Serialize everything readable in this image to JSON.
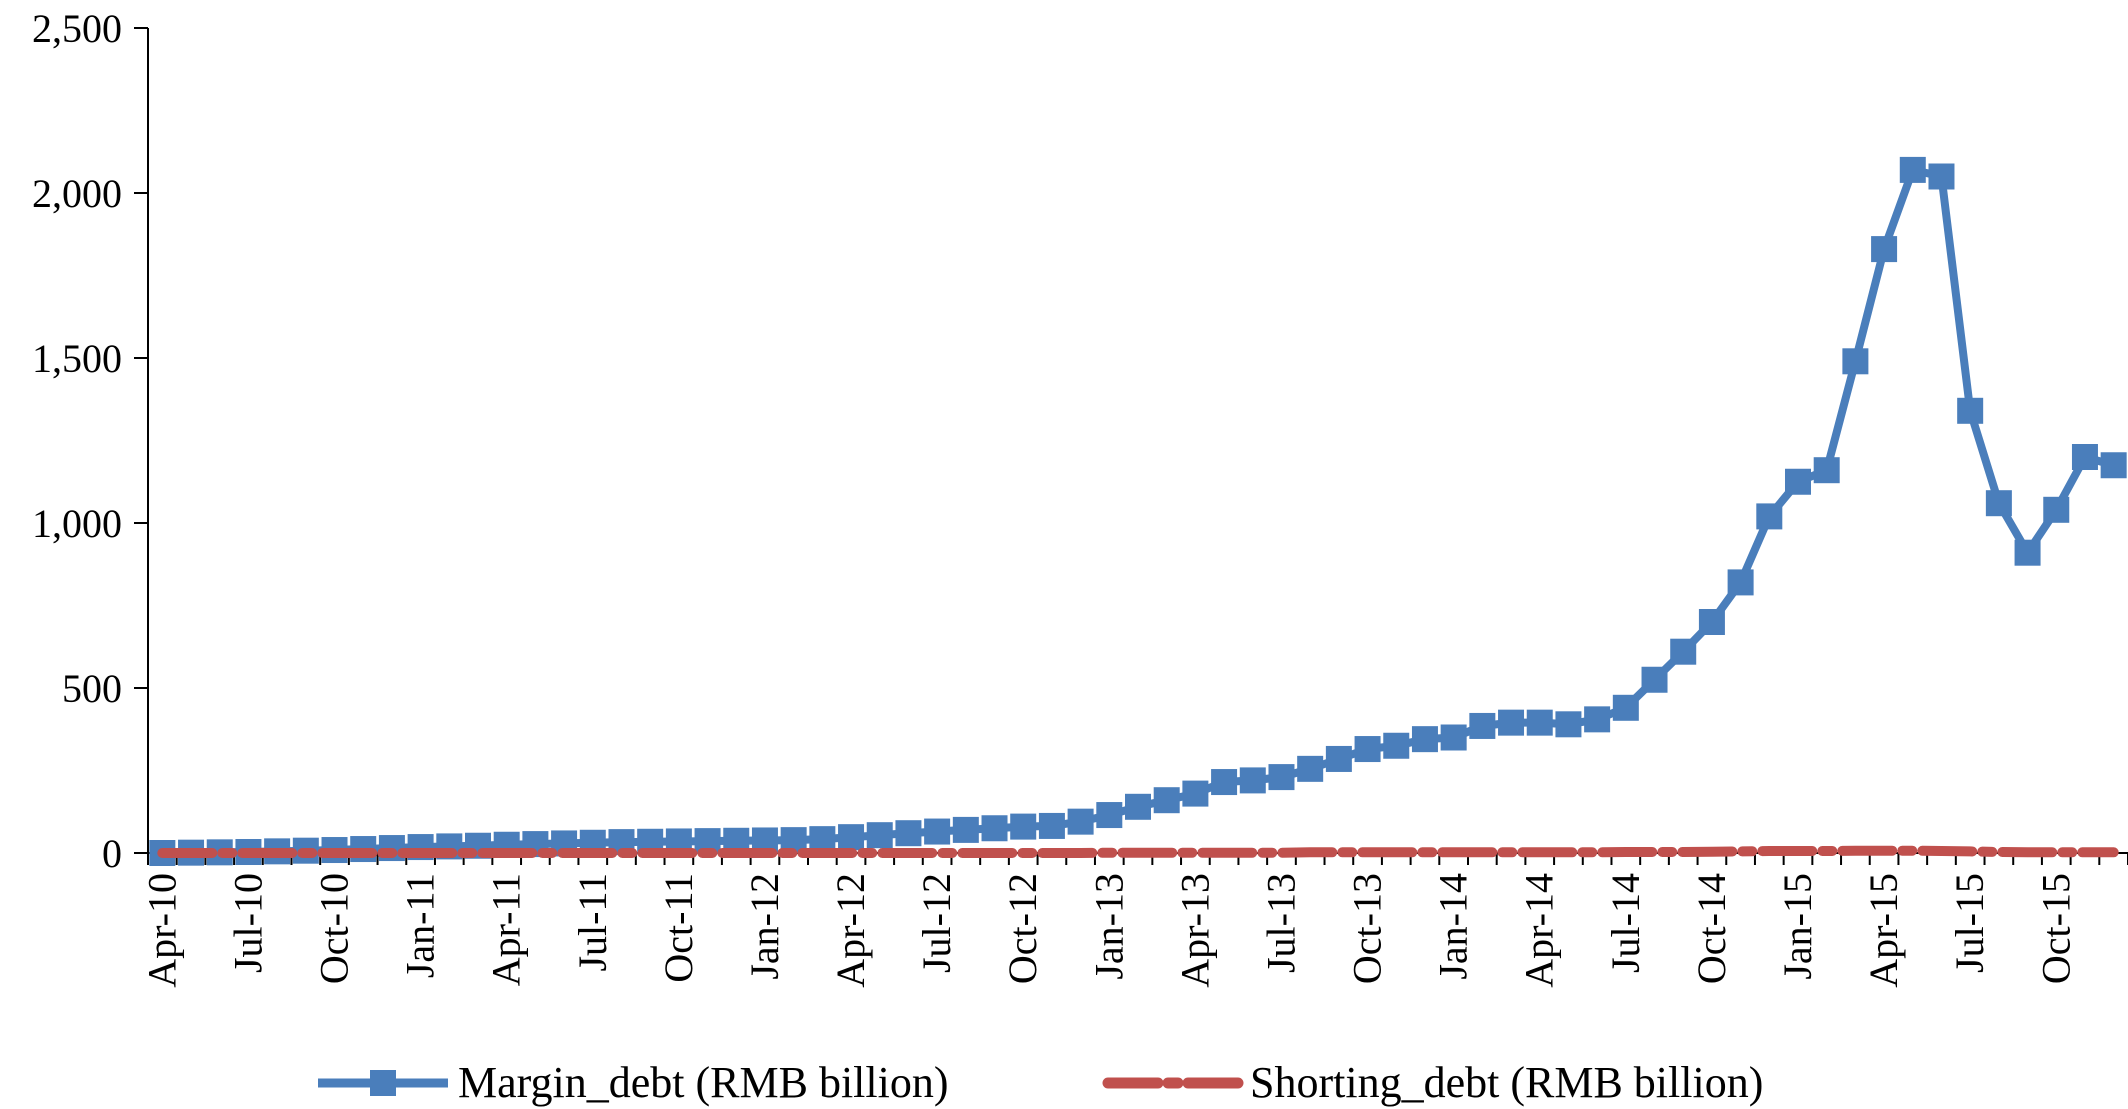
{
  "chart_data": {
    "type": "line",
    "title": "",
    "xlabel": "",
    "ylabel": "",
    "ylim": [
      0,
      2500
    ],
    "yticks": [
      0,
      500,
      1000,
      1500,
      2000,
      2500
    ],
    "ytick_labels": [
      "0",
      "500",
      "1,000",
      "1,500",
      "2,000",
      "2,500"
    ],
    "x": [
      "Apr-10",
      "May-10",
      "Jun-10",
      "Jul-10",
      "Aug-10",
      "Sep-10",
      "Oct-10",
      "Nov-10",
      "Dec-10",
      "Jan-11",
      "Feb-11",
      "Mar-11",
      "Apr-11",
      "May-11",
      "Jun-11",
      "Jul-11",
      "Aug-11",
      "Sep-11",
      "Oct-11",
      "Nov-11",
      "Dec-11",
      "Jan-12",
      "Feb-12",
      "Mar-12",
      "Apr-12",
      "May-12",
      "Jun-12",
      "Jul-12",
      "Aug-12",
      "Sep-12",
      "Oct-12",
      "Nov-12",
      "Dec-12",
      "Jan-13",
      "Feb-13",
      "Mar-13",
      "Apr-13",
      "May-13",
      "Jun-13",
      "Jul-13",
      "Aug-13",
      "Sep-13",
      "Oct-13",
      "Nov-13",
      "Dec-13",
      "Jan-14",
      "Feb-14",
      "Mar-14",
      "Apr-14",
      "May-14",
      "Jun-14",
      "Jul-14",
      "Aug-14",
      "Sep-14",
      "Oct-14",
      "Nov-14",
      "Dec-14",
      "Jan-15",
      "Feb-15",
      "Mar-15",
      "Apr-15",
      "May-15",
      "Jun-15",
      "Jul-15",
      "Aug-15",
      "Sep-15",
      "Oct-15",
      "Nov-15",
      "Dec-15"
    ],
    "x_tick_labels": [
      "Apr-10",
      "Jul-10",
      "Oct-10",
      "Jan-11",
      "Apr-11",
      "Jul-11",
      "Oct-11",
      "Jan-12",
      "Apr-12",
      "Jul-12",
      "Oct-12",
      "Jan-13",
      "Apr-13",
      "Jul-13",
      "Oct-13",
      "Jan-14",
      "Apr-14",
      "Jul-14",
      "Oct-14",
      "Jan-15",
      "Apr-15",
      "Jul-15",
      "Oct-15"
    ],
    "legend_position": "bottom",
    "series": [
      {
        "name": "Margin_debt (RMB billion)",
        "color": "#4a7ebb",
        "style": "solid-square-markers",
        "values": [
          0,
          1,
          2,
          3,
          5,
          7,
          9,
          12,
          15,
          18,
          20,
          22,
          25,
          27,
          29,
          31,
          33,
          34,
          35,
          36,
          37,
          38,
          39,
          42,
          48,
          54,
          60,
          65,
          70,
          75,
          80,
          82,
          95,
          115,
          140,
          160,
          180,
          215,
          220,
          230,
          255,
          285,
          315,
          325,
          345,
          350,
          385,
          395,
          395,
          390,
          405,
          440,
          525,
          610,
          700,
          820,
          1020,
          1125,
          1160,
          1490,
          1830,
          2070,
          2050,
          1340,
          1060,
          910,
          1040,
          1200,
          1175
        ]
      },
      {
        "name": "Shorting_debt (RMB billion)",
        "color": "#c0504d",
        "style": "dash-dot",
        "values": [
          0,
          0,
          0,
          0,
          0,
          0,
          0,
          0,
          0,
          0,
          0,
          0,
          0,
          0,
          0,
          0,
          0,
          0,
          0,
          0,
          0,
          0,
          0,
          0,
          0,
          0,
          0,
          0,
          0,
          0,
          0,
          0,
          0,
          1,
          1,
          1,
          1,
          1,
          1,
          1,
          2,
          2,
          2,
          2,
          2,
          2,
          2,
          2,
          2,
          2,
          2,
          3,
          3,
          3,
          4,
          5,
          6,
          6,
          6,
          7,
          7,
          7,
          6,
          5,
          3,
          2,
          2,
          2,
          2
        ]
      }
    ]
  }
}
